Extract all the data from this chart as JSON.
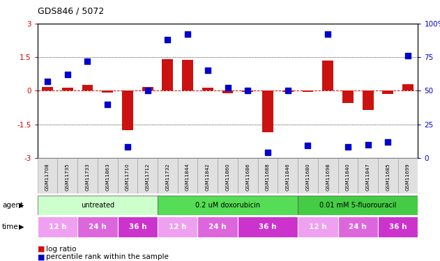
{
  "title": "GDS846 / 5072",
  "samples": [
    "GSM11708",
    "GSM11735",
    "GSM11733",
    "GSM11863",
    "GSM11710",
    "GSM11712",
    "GSM11732",
    "GSM11844",
    "GSM11842",
    "GSM11860",
    "GSM11686",
    "GSM11688",
    "GSM11846",
    "GSM11680",
    "GSM11698",
    "GSM11840",
    "GSM11847",
    "GSM11685",
    "GSM11699"
  ],
  "log_ratio": [
    0.15,
    0.12,
    0.27,
    -0.08,
    -1.75,
    0.15,
    1.42,
    1.38,
    0.12,
    -0.12,
    -0.05,
    -1.85,
    -0.05,
    -0.05,
    1.35,
    -0.55,
    -0.85,
    -0.15,
    0.3
  ],
  "percentile": [
    57,
    62,
    72,
    40,
    8,
    50,
    88,
    92,
    65,
    52,
    50,
    4,
    50,
    9,
    92,
    8,
    10,
    12,
    76
  ],
  "ylim_left": [
    -3,
    3
  ],
  "ylim_right": [
    0,
    100
  ],
  "yticks_left": [
    -3,
    -1.5,
    0,
    1.5,
    3
  ],
  "yticks_right": [
    0,
    25,
    50,
    75,
    100
  ],
  "agent_groups": [
    {
      "label": "untreated",
      "start": 0,
      "end": 6,
      "color": "#ccffcc"
    },
    {
      "label": "0.2 uM doxorubicin",
      "start": 6,
      "end": 13,
      "color": "#55dd55"
    },
    {
      "label": "0.01 mM 5-fluorouracil",
      "start": 13,
      "end": 19,
      "color": "#44cc44"
    }
  ],
  "time_groups": [
    {
      "label": "12 h",
      "start": 0,
      "end": 2,
      "color": "#f0a0f0"
    },
    {
      "label": "24 h",
      "start": 2,
      "end": 4,
      "color": "#dd66dd"
    },
    {
      "label": "36 h",
      "start": 4,
      "end": 6,
      "color": "#cc33cc"
    },
    {
      "label": "12 h",
      "start": 6,
      "end": 8,
      "color": "#f0a0f0"
    },
    {
      "label": "24 h",
      "start": 8,
      "end": 10,
      "color": "#dd66dd"
    },
    {
      "label": "36 h",
      "start": 10,
      "end": 13,
      "color": "#cc33cc"
    },
    {
      "label": "12 h",
      "start": 13,
      "end": 15,
      "color": "#f0a0f0"
    },
    {
      "label": "24 h",
      "start": 15,
      "end": 17,
      "color": "#dd66dd"
    },
    {
      "label": "36 h",
      "start": 17,
      "end": 19,
      "color": "#cc33cc"
    }
  ],
  "bar_color": "#cc1111",
  "dot_color": "#0000cc",
  "bar_width": 0.55,
  "dot_size": 28,
  "legend_items": [
    {
      "label": "log ratio",
      "color": "#cc1111"
    },
    {
      "label": "percentile rank within the sample",
      "color": "#0000cc"
    }
  ],
  "sample_label_color": "#888888",
  "bg_color": "#ffffff"
}
